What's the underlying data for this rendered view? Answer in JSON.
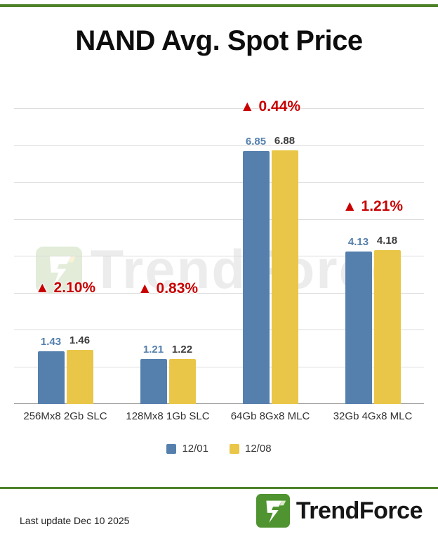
{
  "title": "NAND Avg. Spot Price",
  "watermark": "TrendForce",
  "footer": {
    "last_update": "Last update Dec 10 2025",
    "brand": "TrendForce"
  },
  "icons": {
    "brand_logo": "trendforce-lightning-f-icon"
  },
  "colors": {
    "accent_green": "#4e832a",
    "series1_blue": "#5580ad",
    "series2_yellow": "#e9c647",
    "change_red": "#c80000"
  },
  "chart_data": {
    "type": "bar",
    "title": "NAND Avg. Spot Price",
    "categories": [
      "256Mx8 2Gb SLC",
      "128Mx8 1Gb SLC",
      "64Gb 8Gx8 MLC",
      "32Gb 4Gx8 MLC"
    ],
    "series": [
      {
        "name": "12/01",
        "color": "#5580ad",
        "values": [
          1.43,
          1.21,
          6.85,
          4.13
        ]
      },
      {
        "name": "12/08",
        "color": "#e9c647",
        "values": [
          1.46,
          1.22,
          6.88,
          4.18
        ]
      }
    ],
    "change_labels": [
      "▲ 2.10%",
      "▲ 0.83%",
      "▲ 0.44%",
      "▲ 1.21%"
    ],
    "xlabel": "",
    "ylabel": "",
    "ylim": [
      0,
      8
    ],
    "grid": true,
    "legend_position": "bottom",
    "value_label_decimals": 2
  }
}
